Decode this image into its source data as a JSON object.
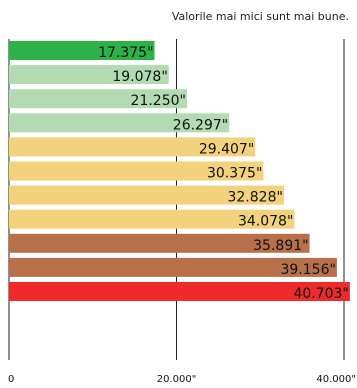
{
  "note": "Valorile mai mici sunt mai bune.",
  "chart_data": {
    "type": "bar",
    "orientation": "horizontal",
    "xlim": [
      0,
      40000
    ],
    "x_tick_values": [
      0,
      20000,
      40000
    ],
    "x_tick_labels": [
      "0",
      "20.000\"",
      "40.000\""
    ],
    "grid": true,
    "values": [
      17.375,
      19.078,
      21.25,
      26.297,
      29.407,
      30.375,
      32.828,
      34.078,
      35.891,
      39.156,
      40.703
    ],
    "value_labels": [
      "17.375\"",
      "19.078\"",
      "21.250\"",
      "26.297\"",
      "29.407\"",
      "30.375\"",
      "32.828\"",
      "34.078\"",
      "35.891\"",
      "39.156\"",
      "40.703\""
    ],
    "colors": [
      "#2db24a",
      "#b3dbb1",
      "#b3dbb1",
      "#b3dbb1",
      "#f3d27d",
      "#f3d27d",
      "#f3d27d",
      "#f3d27d",
      "#b8704b",
      "#b8704b",
      "#ee2a2a"
    ]
  }
}
